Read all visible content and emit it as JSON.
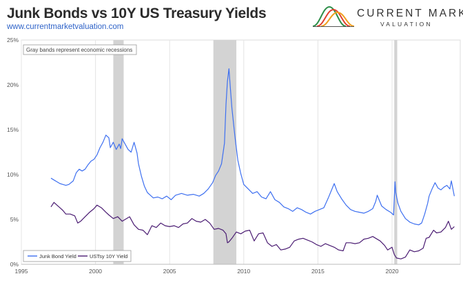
{
  "header": {
    "title": "Junk Bonds vs 10Y US Treasury Yields",
    "link": "www.currentmarketvaluation.com",
    "brand_name": "CURRENT MARKET",
    "brand_sub": "VALUATION"
  },
  "colors": {
    "junk": "#3d6ff0",
    "ust": "#4a1b72",
    "recession": "#d3d3d3",
    "grid": "#e4e4e4",
    "axis_text": "#555555"
  },
  "chart_data": {
    "type": "line",
    "xlim": [
      1995,
      2024.6
    ],
    "ylim": [
      0,
      25
    ],
    "x_ticks": [
      1995,
      2000,
      2005,
      2010,
      2015,
      2020
    ],
    "y_ticks": [
      0,
      5,
      10,
      15,
      20,
      25
    ],
    "y_tick_labels": [
      "0%",
      "5%",
      "10%",
      "15%",
      "20%",
      "25%"
    ],
    "grid": "vertical",
    "annotation": "Gray bands represent economic recessions",
    "recessions": [
      [
        2001.2,
        2001.9
      ],
      [
        2007.95,
        2009.5
      ],
      [
        2020.15,
        2020.35
      ]
    ],
    "legend_placement": "bottom-left",
    "series": [
      {
        "name": "Junk Bond Yield",
        "x": [
          1997.0,
          1997.2,
          1997.4,
          1997.6,
          1997.8,
          1998.0,
          1998.2,
          1998.5,
          1998.7,
          1998.9,
          1999.1,
          1999.3,
          1999.5,
          1999.7,
          1999.9,
          2000.1,
          2000.3,
          2000.5,
          2000.7,
          2000.9,
          2001.0,
          2001.2,
          2001.4,
          2001.6,
          2001.7,
          2001.8,
          2002.0,
          2002.2,
          2002.4,
          2002.6,
          2002.8,
          2002.9,
          2003.1,
          2003.3,
          2003.5,
          2003.7,
          2003.9,
          2004.2,
          2004.5,
          2004.8,
          2005.1,
          2005.4,
          2005.8,
          2006.2,
          2006.6,
          2007.0,
          2007.3,
          2007.6,
          2007.9,
          2008.1,
          2008.3,
          2008.5,
          2008.7,
          2008.8,
          2008.9,
          2009.0,
          2009.1,
          2009.2,
          2009.4,
          2009.6,
          2009.8,
          2010.0,
          2010.3,
          2010.6,
          2010.9,
          2011.2,
          2011.5,
          2011.8,
          2012.1,
          2012.4,
          2012.7,
          2013.0,
          2013.3,
          2013.6,
          2013.9,
          2014.2,
          2014.5,
          2014.8,
          2015.1,
          2015.4,
          2015.7,
          2015.9,
          2016.1,
          2016.3,
          2016.6,
          2016.9,
          2017.2,
          2017.5,
          2017.8,
          2018.1,
          2018.4,
          2018.7,
          2018.9,
          2019.0,
          2019.3,
          2019.6,
          2019.9,
          2020.1,
          2020.2,
          2020.25,
          2020.4,
          2020.6,
          2020.9,
          2021.2,
          2021.5,
          2021.8,
          2022.0,
          2022.2,
          2022.4,
          2022.5,
          2022.7,
          2022.9,
          2023.1,
          2023.3,
          2023.5,
          2023.7,
          2023.9,
          2024.0,
          2024.2
        ],
        "values": [
          9.6,
          9.4,
          9.2,
          9.0,
          8.9,
          8.8,
          8.9,
          9.3,
          10.2,
          10.6,
          10.4,
          10.6,
          11.1,
          11.5,
          11.7,
          12.2,
          13.0,
          13.6,
          14.4,
          14.1,
          13.0,
          13.6,
          12.8,
          13.4,
          12.9,
          14.0,
          13.4,
          12.8,
          12.5,
          13.6,
          12.4,
          11.2,
          9.8,
          8.7,
          8.0,
          7.7,
          7.4,
          7.5,
          7.3,
          7.6,
          7.2,
          7.7,
          7.9,
          7.7,
          7.8,
          7.6,
          7.9,
          8.4,
          9.1,
          9.9,
          10.4,
          11.2,
          13.5,
          17.8,
          20.4,
          21.8,
          19.6,
          17.4,
          14.3,
          11.6,
          10.1,
          8.9,
          8.4,
          7.9,
          8.1,
          7.5,
          7.3,
          8.1,
          7.2,
          6.9,
          6.4,
          6.2,
          5.9,
          6.3,
          6.1,
          5.8,
          5.6,
          5.9,
          6.1,
          6.3,
          7.4,
          8.2,
          9.0,
          8.1,
          7.3,
          6.6,
          6.1,
          5.9,
          5.8,
          5.7,
          5.9,
          6.2,
          7.0,
          7.7,
          6.5,
          6.1,
          5.8,
          5.5,
          9.2,
          8.0,
          6.8,
          5.9,
          5.1,
          4.7,
          4.5,
          4.4,
          4.6,
          5.6,
          6.8,
          7.6,
          8.4,
          9.1,
          8.5,
          8.3,
          8.6,
          8.8,
          8.4,
          9.3,
          7.6
        ]
      },
      {
        "name": "USTsy 10Y Yield",
        "x": [
          1997.0,
          1997.2,
          1997.4,
          1997.6,
          1997.8,
          1998.0,
          1998.3,
          1998.6,
          1998.8,
          1999.0,
          1999.3,
          1999.6,
          1999.9,
          2000.1,
          2000.4,
          2000.7,
          2000.9,
          2001.2,
          2001.5,
          2001.8,
          2002.0,
          2002.3,
          2002.6,
          2002.9,
          2003.2,
          2003.5,
          2003.8,
          2004.1,
          2004.4,
          2004.7,
          2005.0,
          2005.3,
          2005.6,
          2005.9,
          2006.2,
          2006.5,
          2006.8,
          2007.1,
          2007.4,
          2007.7,
          2008.0,
          2008.3,
          2008.6,
          2008.8,
          2008.9,
          2009.0,
          2009.2,
          2009.5,
          2009.8,
          2010.1,
          2010.4,
          2010.7,
          2011.0,
          2011.3,
          2011.6,
          2011.9,
          2012.2,
          2012.5,
          2012.8,
          2013.1,
          2013.4,
          2013.7,
          2014.0,
          2014.3,
          2014.6,
          2014.9,
          2015.2,
          2015.5,
          2015.8,
          2016.1,
          2016.4,
          2016.7,
          2016.9,
          2017.2,
          2017.5,
          2017.8,
          2018.1,
          2018.4,
          2018.7,
          2018.9,
          2019.2,
          2019.5,
          2019.7,
          2020.0,
          2020.15,
          2020.3,
          2020.6,
          2020.9,
          2021.2,
          2021.5,
          2021.8,
          2022.1,
          2022.3,
          2022.5,
          2022.8,
          2023.0,
          2023.3,
          2023.6,
          2023.8,
          2024.0,
          2024.2
        ],
        "values": [
          6.4,
          6.9,
          6.6,
          6.3,
          6.0,
          5.6,
          5.6,
          5.4,
          4.6,
          4.8,
          5.3,
          5.8,
          6.2,
          6.6,
          6.3,
          5.8,
          5.5,
          5.1,
          5.3,
          4.8,
          5.0,
          5.3,
          4.4,
          3.9,
          3.8,
          3.3,
          4.3,
          4.1,
          4.6,
          4.3,
          4.2,
          4.3,
          4.1,
          4.5,
          4.6,
          5.1,
          4.8,
          4.7,
          5.0,
          4.6,
          3.9,
          4.0,
          3.8,
          3.4,
          2.4,
          2.5,
          2.9,
          3.6,
          3.4,
          3.7,
          3.8,
          2.6,
          3.4,
          3.5,
          2.4,
          2.0,
          2.2,
          1.6,
          1.7,
          1.9,
          2.6,
          2.8,
          2.9,
          2.7,
          2.5,
          2.2,
          2.0,
          2.3,
          2.1,
          1.9,
          1.6,
          1.5,
          2.4,
          2.4,
          2.3,
          2.4,
          2.8,
          2.9,
          3.1,
          2.9,
          2.6,
          2.1,
          1.6,
          1.9,
          1.1,
          0.7,
          0.6,
          0.8,
          1.6,
          1.4,
          1.5,
          1.8,
          2.9,
          3.0,
          3.8,
          3.5,
          3.6,
          4.1,
          4.8,
          3.9,
          4.2
        ]
      }
    ]
  }
}
